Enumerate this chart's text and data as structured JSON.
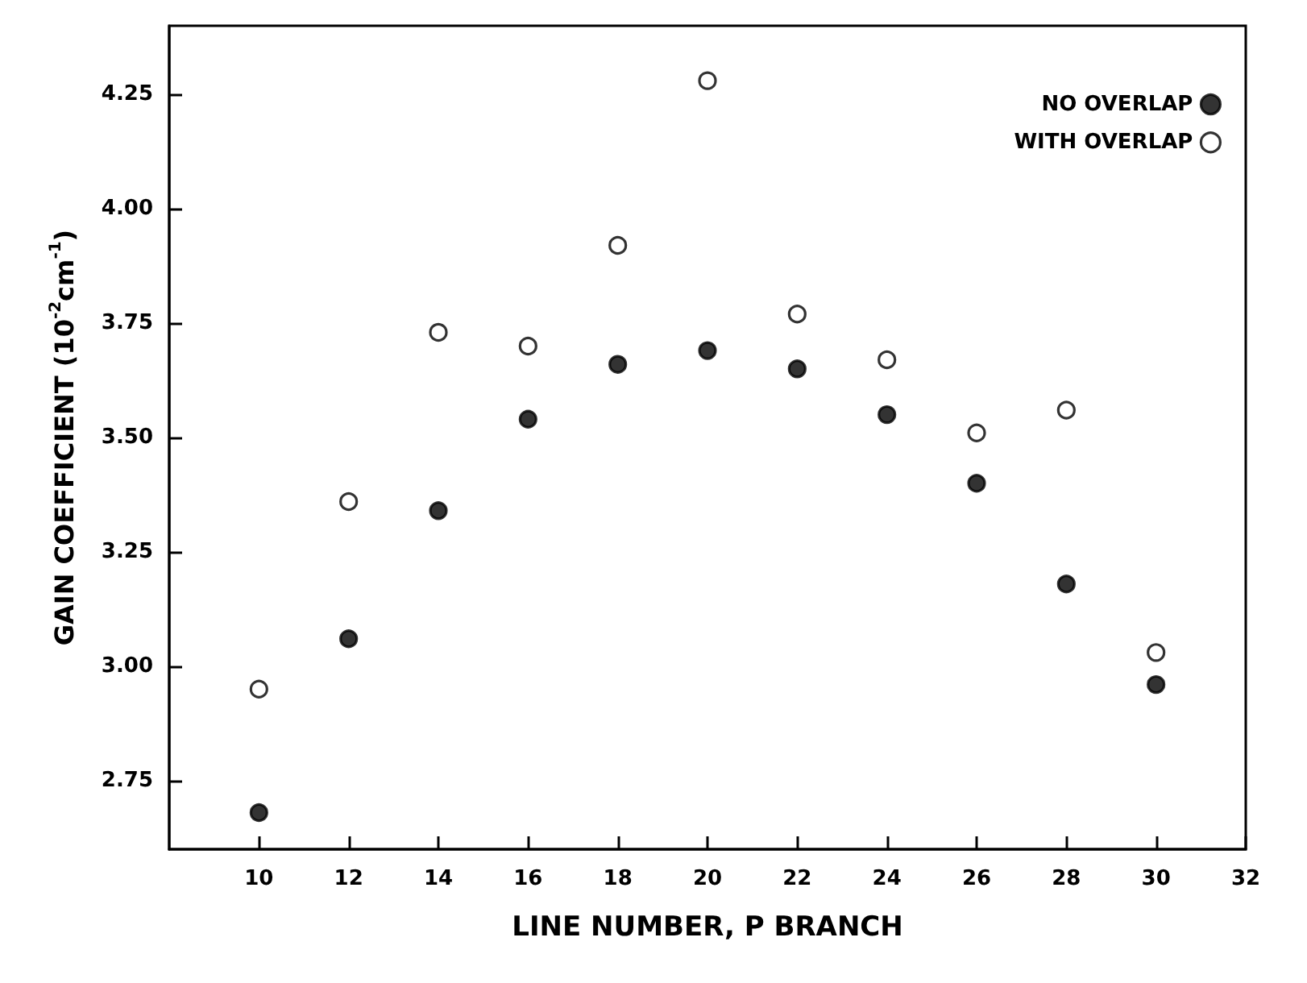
{
  "chart_data": {
    "type": "scatter",
    "xlabel": "LINE NUMBER, P BRANCH",
    "ylabel": "GAIN COEFFICIENT (10$^{-2}$cm$^{-1}$)",
    "x": [
      10,
      12,
      14,
      16,
      18,
      20,
      22,
      24,
      26,
      28,
      30
    ],
    "series": [
      {
        "name": "NO OVERLAP",
        "color": "#000000",
        "values": [
          2.68,
          3.06,
          3.34,
          3.54,
          3.66,
          3.69,
          3.65,
          3.55,
          3.4,
          3.18,
          2.96
        ]
      },
      {
        "name": "WITH OVERLAP",
        "color": "#ffffff",
        "values": [
          2.95,
          3.36,
          3.73,
          3.7,
          3.92,
          4.28,
          3.77,
          3.67,
          3.51,
          3.56,
          3.03
        ]
      }
    ],
    "xlim": [
      8,
      32
    ],
    "xticks": [
      10,
      12,
      14,
      16,
      18,
      20,
      22,
      24,
      26,
      28,
      30,
      32
    ],
    "ylim": [
      2.6,
      4.4
    ],
    "yticks": [
      2.75,
      {
        "value": 3,
        "label": "3.00"
      },
      3.25,
      {
        "value": 3.5,
        "label": "3.50"
      },
      3.75,
      {
        "value": 4,
        "label": "4.00"
      },
      4.25
    ],
    "marker": "circle",
    "grid": false,
    "legend": "top right"
  }
}
